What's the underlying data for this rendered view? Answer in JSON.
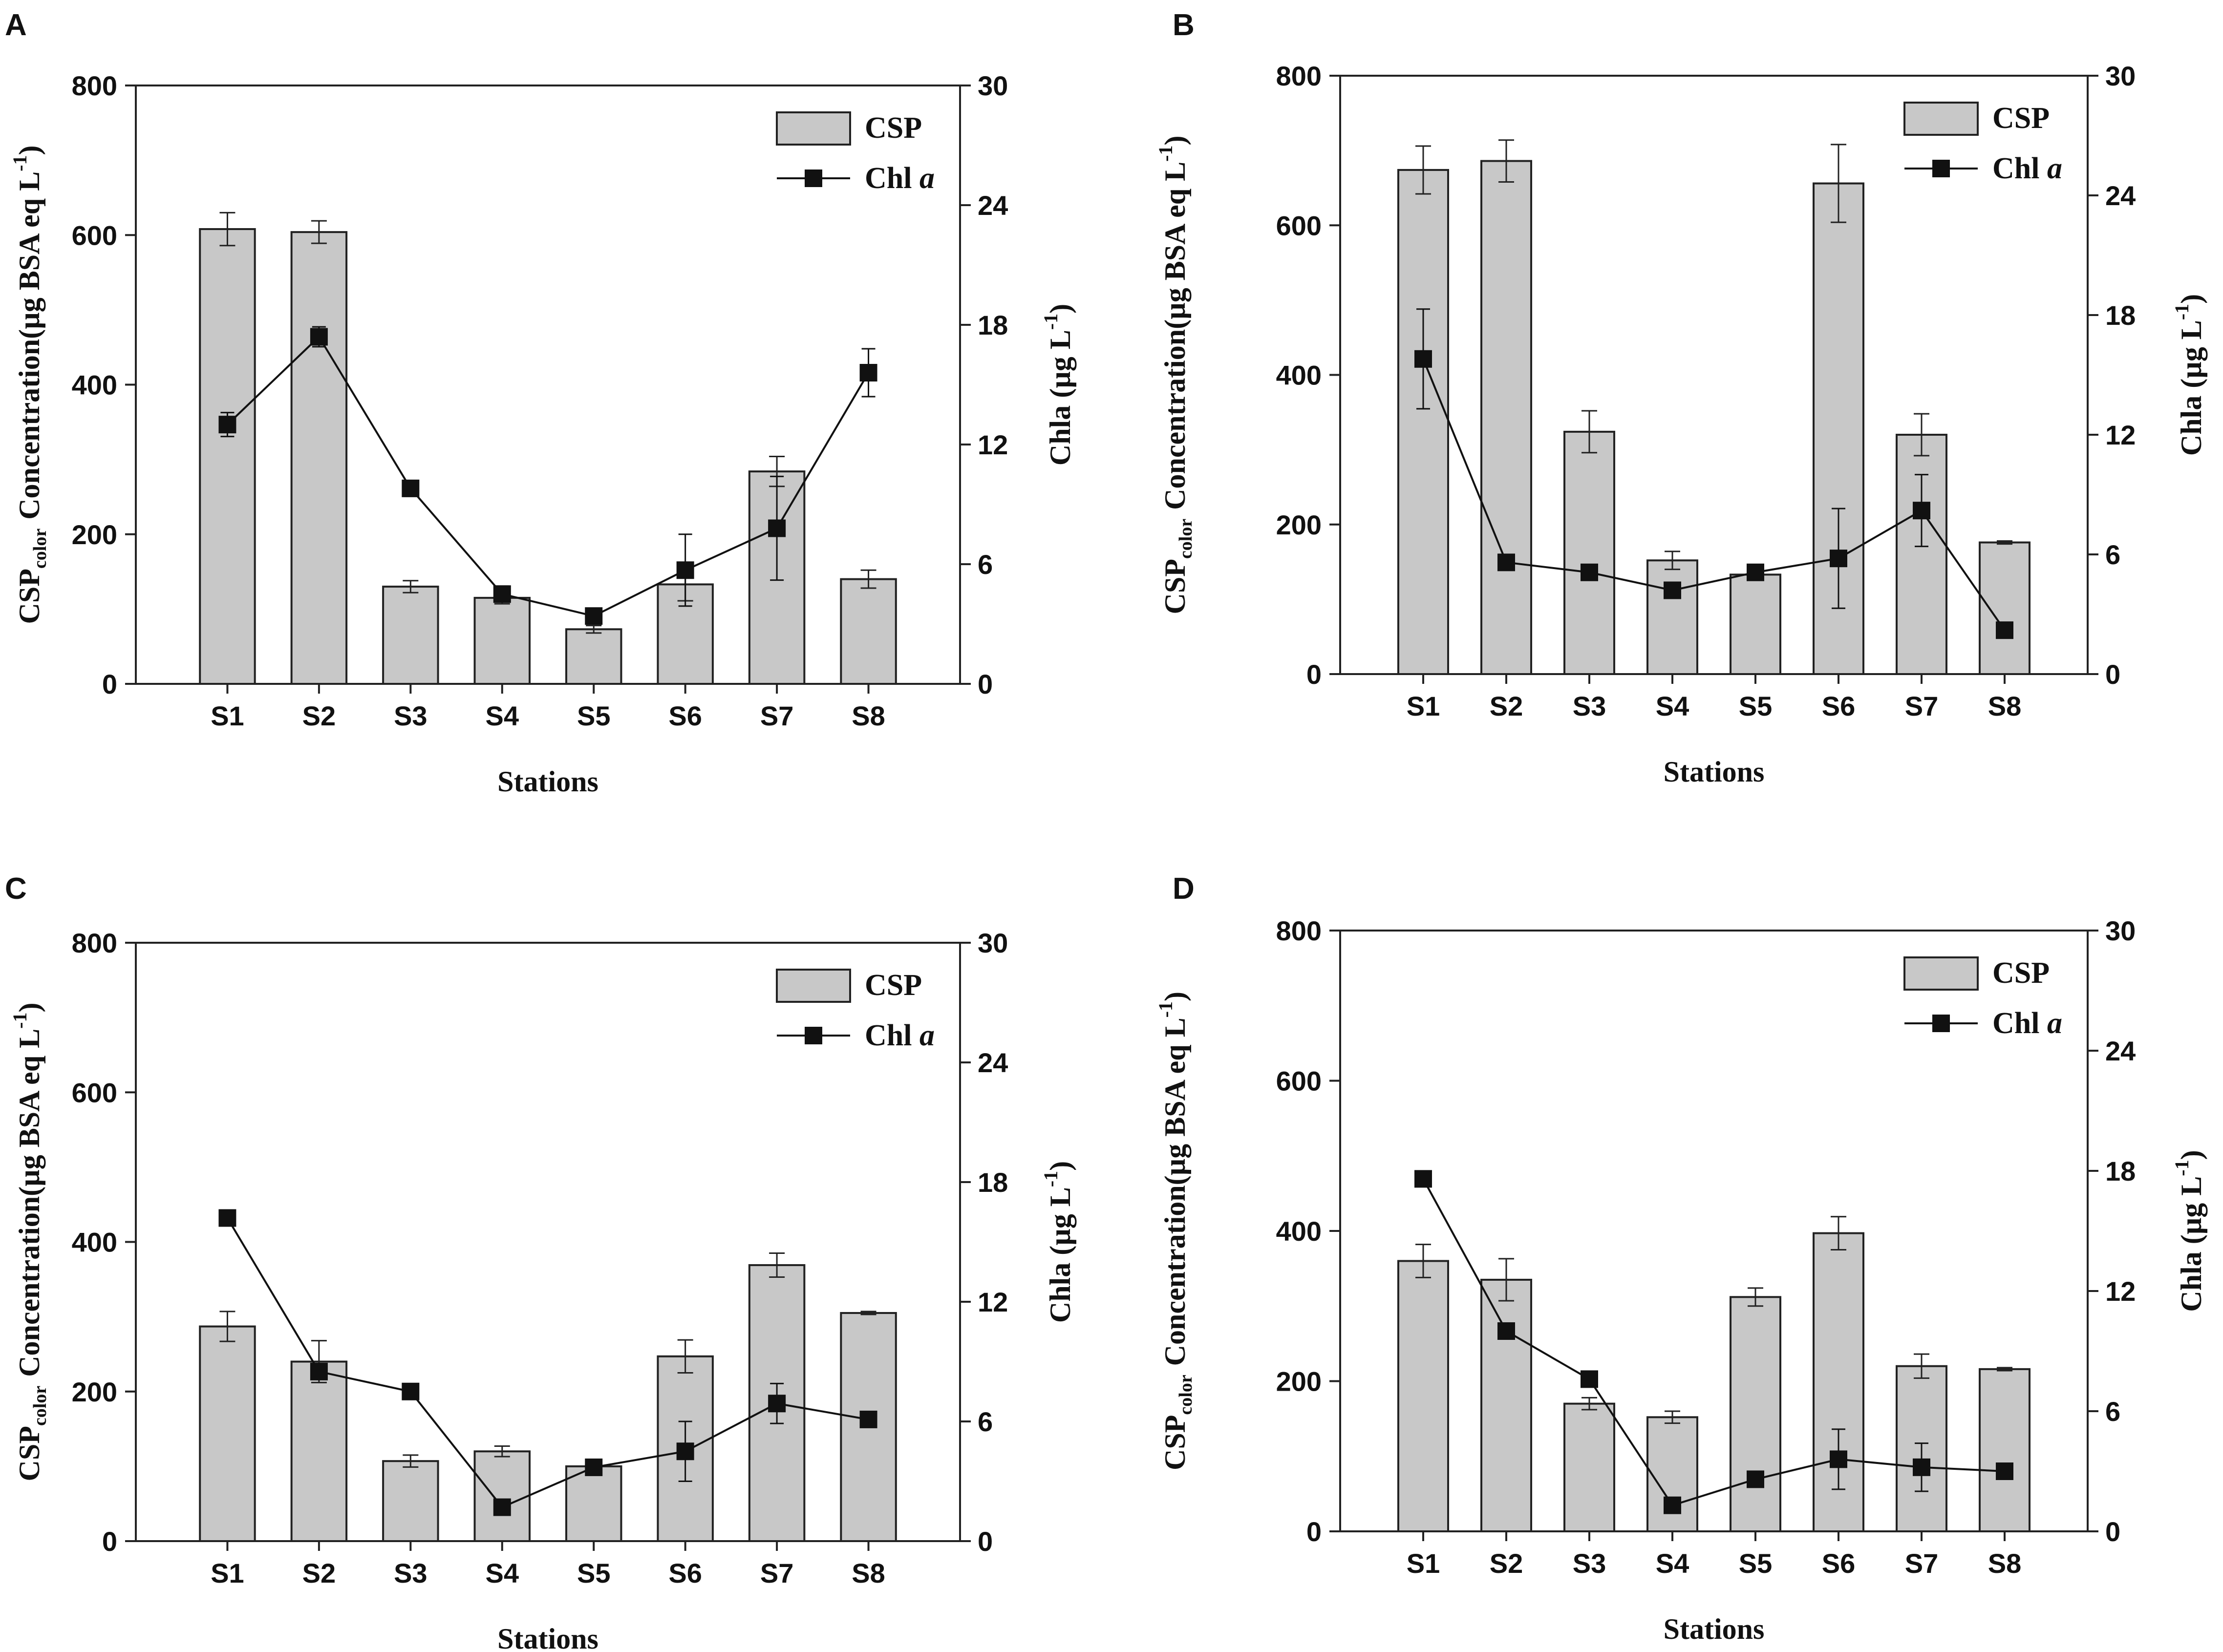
{
  "colors": {
    "bar_fill": "#c8c8c8",
    "axis": "#222222",
    "series": "#111111",
    "background": "#ffffff"
  },
  "chart_data": [
    {
      "panel": "A",
      "type": "bar+line",
      "xlabel": "Stations",
      "ylabel_left_main": "Concentration(µg BSA eq L",
      "ylabel_left_sup": "-1",
      "ylabel_left_close": ")",
      "ylabel_left_prefix": "CSP",
      "ylabel_left_sub": "color",
      "ylabel_right_main": "Chla (µg L",
      "ylabel_right_sup": "-1",
      "ylabel_right_close": ")",
      "categories": [
        "S1",
        "S2",
        "S3",
        "S4",
        "S5",
        "S6",
        "S7",
        "S8"
      ],
      "ylim_left": [
        0,
        800
      ],
      "yticks_left": [
        0,
        200,
        400,
        600,
        800
      ],
      "ylim_right": [
        0,
        30
      ],
      "yticks_right": [
        0,
        6,
        12,
        18,
        24,
        30
      ],
      "legend": {
        "bar": "CSP",
        "line_prefix": "Chl ",
        "line_italic": "a",
        "position": "top-right"
      },
      "bars": {
        "name": "CSP",
        "values": [
          608,
          604,
          130,
          115,
          73,
          133,
          284,
          140
        ],
        "errors": [
          22,
          15,
          8,
          8,
          5,
          22,
          20,
          12
        ]
      },
      "line": {
        "name": "Chl a",
        "values": [
          13.0,
          17.4,
          9.8,
          4.5,
          3.4,
          5.7,
          7.8,
          15.6
        ],
        "errors": [
          0.6,
          0.5,
          0.4,
          0.4,
          0.2,
          1.8,
          2.6,
          1.2
        ]
      }
    },
    {
      "panel": "B",
      "type": "bar+line",
      "xlabel": "Stations",
      "ylabel_left_main": "Concentration(µg BSA eq L",
      "ylabel_left_sup": "-1",
      "ylabel_left_close": ")",
      "ylabel_left_prefix": "CSP",
      "ylabel_left_sub": "color",
      "ylabel_right_main": "Chla (µg L",
      "ylabel_right_sup": "-1",
      "ylabel_right_close": ")",
      "categories": [
        "S1",
        "S2",
        "S3",
        "S4",
        "S5",
        "S6",
        "S7",
        "S8"
      ],
      "ylim_left": [
        0,
        800
      ],
      "yticks_left": [
        0,
        200,
        400,
        600,
        800
      ],
      "ylim_right": [
        0,
        30
      ],
      "yticks_right": [
        0,
        6,
        12,
        18,
        24,
        30
      ],
      "legend": {
        "bar": "CSP",
        "line_prefix": "Chl ",
        "line_italic": "a",
        "position": "top-right"
      },
      "bars": {
        "name": "CSP",
        "values": [
          674,
          686,
          324,
          152,
          133,
          656,
          320,
          176
        ],
        "errors": [
          32,
          28,
          28,
          12,
          6,
          52,
          28,
          2
        ]
      },
      "line": {
        "name": "Chl a",
        "values": [
          15.8,
          5.6,
          5.1,
          4.2,
          5.1,
          5.8,
          8.2,
          2.2
        ],
        "errors": [
          2.5,
          0.2,
          0.2,
          0.2,
          0.3,
          2.5,
          1.8,
          0.2
        ]
      }
    },
    {
      "panel": "C",
      "type": "bar+line",
      "xlabel": "Stations",
      "ylabel_left_main": "Concentration(µg BSA eq L",
      "ylabel_left_sup": "-1",
      "ylabel_left_close": ")",
      "ylabel_left_prefix": "CSP",
      "ylabel_left_sub": "color",
      "ylabel_right_main": "Chla (µg L",
      "ylabel_right_sup": "-1",
      "ylabel_right_close": ")",
      "categories": [
        "S1",
        "S2",
        "S3",
        "S4",
        "S5",
        "S6",
        "S7",
        "S8"
      ],
      "ylim_left": [
        0,
        800
      ],
      "yticks_left": [
        0,
        200,
        400,
        600,
        800
      ],
      "ylim_right": [
        0,
        30
      ],
      "yticks_right": [
        0,
        6,
        12,
        18,
        24,
        30
      ],
      "legend": {
        "bar": "CSP",
        "line_prefix": "Chl ",
        "line_italic": "a",
        "position": "top-right"
      },
      "bars": {
        "name": "CSP",
        "values": [
          287,
          240,
          107,
          120,
          100,
          247,
          369,
          305
        ],
        "errors": [
          20,
          28,
          8,
          7,
          5,
          22,
          16,
          2
        ]
      },
      "line": {
        "name": "Chl a",
        "values": [
          16.2,
          8.5,
          7.5,
          1.7,
          3.7,
          4.5,
          6.9,
          6.1
        ],
        "errors": [
          0.2,
          0.3,
          0.1,
          0.1,
          0.3,
          1.5,
          1.0,
          0.3
        ]
      }
    },
    {
      "panel": "D",
      "type": "bar+line",
      "xlabel": "Stations",
      "ylabel_left_main": "Concentration(µg BSA eq L",
      "ylabel_left_sup": "-1",
      "ylabel_left_close": ")",
      "ylabel_left_prefix": "CSP",
      "ylabel_left_sub": "color",
      "ylabel_right_main": "Chla (µg L",
      "ylabel_right_sup": "-1",
      "ylabel_right_close": ")",
      "categories": [
        "S1",
        "S2",
        "S3",
        "S4",
        "S5",
        "S6",
        "S7",
        "S8"
      ],
      "ylim_left": [
        0,
        800
      ],
      "yticks_left": [
        0,
        200,
        400,
        600,
        800
      ],
      "ylim_right": [
        0,
        30
      ],
      "yticks_right": [
        0,
        6,
        12,
        18,
        24,
        30
      ],
      "legend": {
        "bar": "CSP",
        "line_prefix": "Chl ",
        "line_italic": "a",
        "position": "top-right"
      },
      "bars": {
        "name": "CSP",
        "values": [
          360,
          335,
          170,
          152,
          312,
          397,
          220,
          216
        ],
        "errors": [
          22,
          28,
          8,
          8,
          12,
          22,
          16,
          2
        ]
      },
      "line": {
        "name": "Chl a",
        "values": [
          17.6,
          10.0,
          7.6,
          1.3,
          2.6,
          3.6,
          3.2,
          3.0
        ],
        "errors": [
          0.2,
          0.2,
          0.2,
          0.1,
          0.1,
          1.5,
          1.2,
          0.3
        ]
      }
    }
  ]
}
